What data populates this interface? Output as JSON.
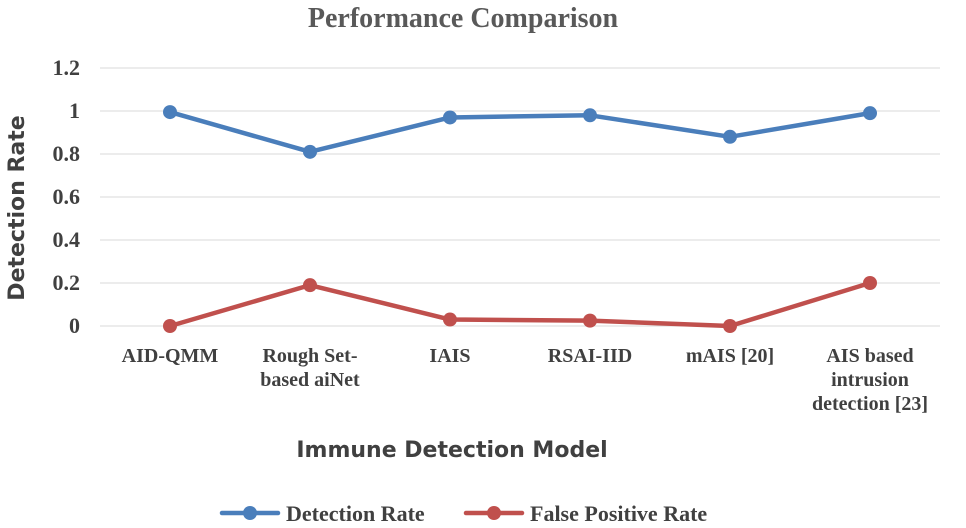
{
  "chart_data": {
    "type": "line",
    "title": "Performance Comparison",
    "xlabel": "Immune Detection Model",
    "ylabel": "Detection Rate",
    "ylim": [
      0,
      1.2
    ],
    "yticks": [
      "0",
      "0.2",
      "0.4",
      "0.6",
      "0.8",
      "1",
      "1.2"
    ],
    "ytick_values": [
      0,
      0.2,
      0.4,
      0.6,
      0.8,
      1.0,
      1.2
    ],
    "grid": true,
    "legend_position": "bottom",
    "categories": [
      [
        "AID-QMM"
      ],
      [
        "Rough Set-",
        "based aiNet"
      ],
      [
        "IAIS"
      ],
      [
        "RSAI-IID"
      ],
      [
        "mAIS [20]"
      ],
      [
        "AIS based",
        "intrusion",
        "detection [23]"
      ]
    ],
    "series": [
      {
        "name": "Detection Rate",
        "color": "#4a7ebb",
        "values": [
          0.995,
          0.81,
          0.97,
          0.98,
          0.88,
          0.99
        ]
      },
      {
        "name": "False Positive Rate",
        "color": "#c0504d",
        "values": [
          0.0,
          0.19,
          0.03,
          0.025,
          0.0,
          0.2
        ]
      }
    ]
  }
}
